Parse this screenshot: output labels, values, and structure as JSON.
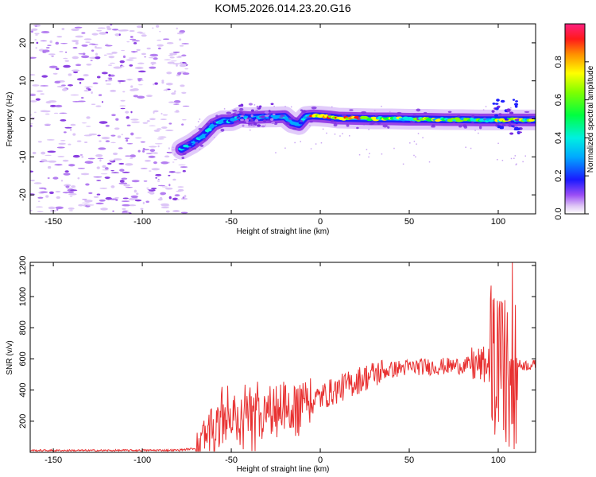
{
  "figure_title": "KOM5.2026.014.23.20.G16",
  "chart_data": [
    {
      "type": "heatmap",
      "title": "KOM5.2026.014.23.20.G16",
      "xlabel": "Height of straight line (km)",
      "ylabel": "Frequency (Hz)",
      "xlim": [
        -163,
        121
      ],
      "ylim": [
        -25,
        25
      ],
      "x_ticks": [
        -150,
        -100,
        -50,
        0,
        50,
        100
      ],
      "y_ticks": [
        -20,
        -10,
        0,
        10,
        20
      ],
      "colorbar": {
        "label": "Normalized spectral amplitude",
        "range": [
          0,
          1
        ],
        "ticks": [
          0.0,
          0.2,
          0.4,
          0.6,
          0.8
        ]
      },
      "signal_track": [
        {
          "x": -78,
          "y": -8.0
        },
        {
          "x": -72,
          "y": -6.5
        },
        {
          "x": -66,
          "y": -4.5
        },
        {
          "x": -60,
          "y": -1.5
        },
        {
          "x": -55,
          "y": -0.5
        },
        {
          "x": -50,
          "y": -0.5
        },
        {
          "x": -45,
          "y": 0.5
        },
        {
          "x": -40,
          "y": 0.3
        },
        {
          "x": -35,
          "y": 0.4
        },
        {
          "x": -30,
          "y": 0.5
        },
        {
          "x": -25,
          "y": 0.5
        },
        {
          "x": -20,
          "y": 0.6
        },
        {
          "x": -16,
          "y": -1.0
        },
        {
          "x": -12,
          "y": -1.5
        },
        {
          "x": -8,
          "y": 0.6
        },
        {
          "x": -4,
          "y": 0.8
        },
        {
          "x": 0,
          "y": 0.7
        },
        {
          "x": 5,
          "y": 0.5
        },
        {
          "x": 10,
          "y": 0.2
        },
        {
          "x": 20,
          "y": 0.1
        },
        {
          "x": 30,
          "y": 0.0
        },
        {
          "x": 40,
          "y": 0.0
        },
        {
          "x": 50,
          "y": -0.1
        },
        {
          "x": 60,
          "y": -0.1
        },
        {
          "x": 70,
          "y": -0.2
        },
        {
          "x": 80,
          "y": -0.2
        },
        {
          "x": 90,
          "y": -0.3
        },
        {
          "x": 100,
          "y": -0.3
        },
        {
          "x": 110,
          "y": -0.3
        },
        {
          "x": 121,
          "y": -0.3
        }
      ]
    },
    {
      "type": "line",
      "xlabel": "Height of straight line (km)",
      "ylabel": "SNR (v/v)",
      "xlim": [
        -163,
        121
      ],
      "ylim": [
        0,
        1220
      ],
      "x_ticks": [
        -150,
        -100,
        -50,
        0,
        50,
        100
      ],
      "y_ticks": [
        200,
        400,
        600,
        800,
        1000,
        1200
      ],
      "color": "#e83030",
      "series_envelope": [
        {
          "x": -163,
          "y": 12
        },
        {
          "x": -120,
          "y": 12
        },
        {
          "x": -80,
          "y": 14
        },
        {
          "x": -70,
          "y": 25
        },
        {
          "x": -62,
          "y": 120
        },
        {
          "x": -55,
          "y": 200
        },
        {
          "x": -45,
          "y": 230
        },
        {
          "x": -35,
          "y": 230
        },
        {
          "x": -25,
          "y": 280
        },
        {
          "x": -15,
          "y": 300
        },
        {
          "x": -5,
          "y": 330
        },
        {
          "x": 5,
          "y": 380
        },
        {
          "x": 15,
          "y": 430
        },
        {
          "x": 25,
          "y": 480
        },
        {
          "x": 35,
          "y": 520
        },
        {
          "x": 45,
          "y": 540
        },
        {
          "x": 55,
          "y": 550
        },
        {
          "x": 65,
          "y": 550
        },
        {
          "x": 75,
          "y": 555
        },
        {
          "x": 85,
          "y": 560
        },
        {
          "x": 95,
          "y": 560
        },
        {
          "x": 105,
          "y": 560
        },
        {
          "x": 112,
          "y": 560
        },
        {
          "x": 121,
          "y": 560
        }
      ],
      "notable_peaks": [
        {
          "x": 108,
          "y": 1220
        },
        {
          "x": 101,
          "y": 970
        },
        {
          "x": 105,
          "y": 900
        }
      ]
    }
  ]
}
